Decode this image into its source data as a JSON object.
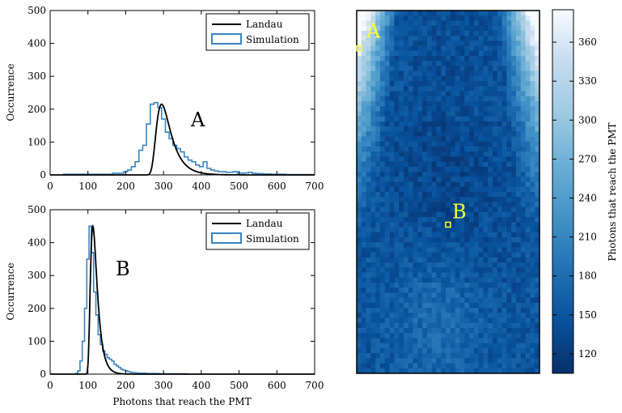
{
  "colors": {
    "landau": "#000000",
    "simulation": "#3a84c0",
    "marker": "#ffff33",
    "colormap": [
      "#08306b",
      "#08519c",
      "#2171b5",
      "#4292c6",
      "#6baed6",
      "#9ecae1",
      "#c6dbef",
      "#f7fbff"
    ]
  },
  "chart_data": [
    {
      "type": "line",
      "panel_label": "A",
      "xlabel": "",
      "ylabel": "Occurrence",
      "xlim": [
        0,
        700
      ],
      "ylim": [
        0,
        500
      ],
      "xticks": [
        0,
        100,
        200,
        300,
        400,
        500,
        600,
        700
      ],
      "yticks": [
        0,
        100,
        200,
        300,
        400,
        500
      ],
      "legend": {
        "position": "top-right",
        "entries": [
          "Landau",
          "Simulation"
        ]
      },
      "series": [
        {
          "name": "Landau",
          "style": "line",
          "mpv": 295,
          "width": 13,
          "peak": 215
        },
        {
          "name": "Simulation",
          "style": "step",
          "bin_width": 10,
          "x": [
            40,
            80,
            120,
            160,
            170,
            180,
            190,
            200,
            210,
            220,
            230,
            240,
            250,
            260,
            270,
            280,
            290,
            300,
            310,
            320,
            330,
            340,
            350,
            360,
            370,
            380,
            390,
            400,
            410,
            420,
            430,
            440,
            450,
            460,
            470,
            480,
            490,
            500,
            510,
            520,
            530,
            540,
            550,
            560,
            570,
            580,
            590,
            600,
            610,
            620,
            630,
            640,
            650,
            660,
            670,
            680,
            690
          ],
          "values": [
            2,
            2,
            2,
            2,
            5,
            5,
            5,
            10,
            15,
            25,
            40,
            75,
            90,
            155,
            215,
            220,
            205,
            170,
            130,
            110,
            90,
            80,
            70,
            55,
            45,
            40,
            30,
            25,
            40,
            20,
            15,
            12,
            10,
            10,
            8,
            8,
            10,
            6,
            5,
            6,
            8,
            5,
            4,
            4,
            3,
            3,
            2,
            2,
            2,
            2,
            1,
            1,
            1,
            1,
            1,
            1,
            1
          ]
        }
      ]
    },
    {
      "type": "line",
      "panel_label": "B",
      "xlabel": "Photons that reach the PMT",
      "ylabel": "Occurrence",
      "xlim": [
        0,
        700
      ],
      "ylim": [
        0,
        500
      ],
      "xticks": [
        0,
        100,
        200,
        300,
        400,
        500,
        600,
        700
      ],
      "yticks": [
        0,
        100,
        200,
        300,
        400,
        500
      ],
      "legend": {
        "position": "top-right",
        "entries": [
          "Landau",
          "Simulation"
        ]
      },
      "series": [
        {
          "name": "Landau",
          "style": "line",
          "mpv": 113,
          "width": 6,
          "peak": 450
        },
        {
          "name": "Simulation",
          "style": "step",
          "bin_width": 6,
          "x": [
            70,
            76,
            82,
            88,
            94,
            100,
            106,
            112,
            118,
            124,
            130,
            136,
            142,
            148,
            154,
            160,
            166,
            172,
            178,
            184,
            190,
            196,
            202,
            208,
            214,
            220,
            230,
            240,
            250,
            260,
            280,
            300,
            330,
            360
          ],
          "values": [
            2,
            10,
            40,
            100,
            200,
            350,
            450,
            370,
            250,
            180,
            120,
            90,
            70,
            60,
            50,
            45,
            40,
            30,
            25,
            20,
            15,
            12,
            10,
            8,
            6,
            5,
            4,
            3,
            3,
            2,
            2,
            1,
            1,
            1
          ]
        }
      ]
    },
    {
      "type": "heatmap",
      "markers": [
        {
          "label": "A",
          "column": 0,
          "row": 7
        },
        {
          "label": "B",
          "column": 19,
          "row": 42
        }
      ],
      "grid": {
        "columns": 39,
        "rows": 72
      },
      "colorbar": {
        "label": "Photons that reach the PMT",
        "range": [
          105,
          385
        ],
        "ticks": [
          120,
          150,
          180,
          210,
          240,
          270,
          300,
          330,
          360
        ]
      }
    }
  ]
}
